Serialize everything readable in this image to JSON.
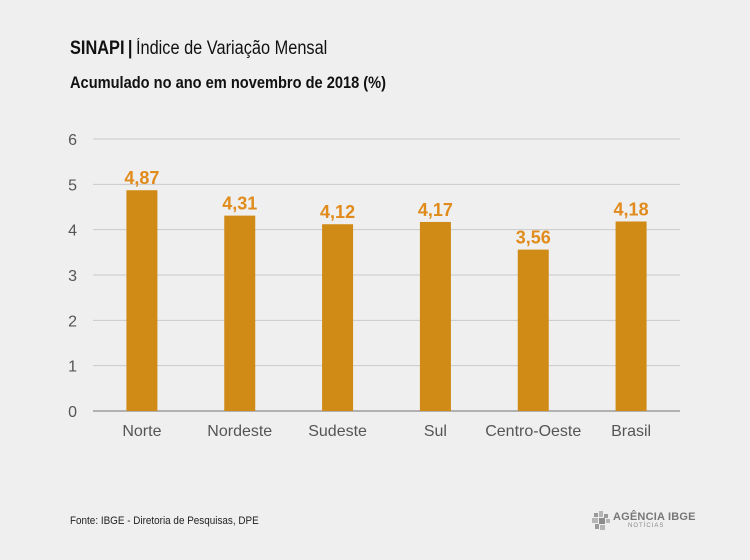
{
  "header": {
    "title_strong": "SINAPI",
    "title_sep": "|",
    "title_rest": "Índice de Variação Mensal",
    "subtitle": "Acumulado no ano em novembro de 2018 (%)"
  },
  "chart_data": {
    "type": "bar",
    "title": "SINAPI | Índice de Variação Mensal",
    "subtitle": "Acumulado no ano em novembro de 2018 (%)",
    "categories": [
      "Norte",
      "Nordeste",
      "Sudeste",
      "Sul",
      "Centro-Oeste",
      "Brasil"
    ],
    "values": [
      4.87,
      4.31,
      4.12,
      4.17,
      3.56,
      4.18
    ],
    "value_labels": [
      "4,87",
      "4,31",
      "4,12",
      "4,17",
      "3,56",
      "4,18"
    ],
    "ylim": [
      0,
      6
    ],
    "yticks": [
      0,
      1,
      2,
      3,
      4,
      5,
      6
    ],
    "xlabel": "",
    "ylabel": "",
    "grid": true,
    "bar_color": "#d08a16",
    "label_color": "#e08b1b",
    "grid_color": "#c9c9c9",
    "axis_color": "#8c8c8c"
  },
  "footer": {
    "source": "Fonte: IBGE - Diretoria de Pesquisas, DPE",
    "logo_text": "AGÊNCIA IBGE",
    "logo_sub": "NOTÍCIAS"
  }
}
